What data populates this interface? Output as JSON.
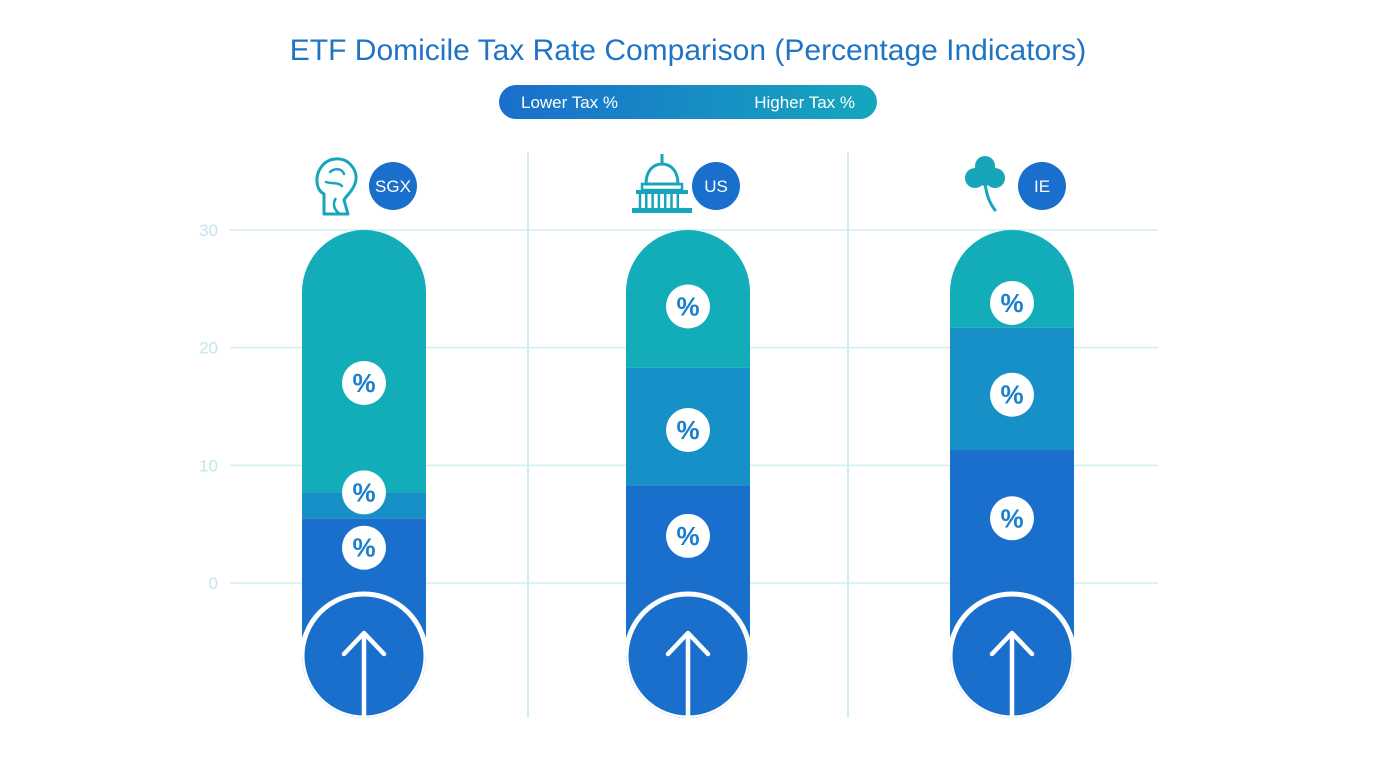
{
  "chart_data": {
    "type": "bar",
    "title": "ETF Domicile Tax Rate Comparison (Percentage Indicators)",
    "legend": {
      "low_label": "Lower Tax %",
      "high_label": "Higher Tax %"
    },
    "yticks": [
      0,
      10,
      20,
      30
    ],
    "ylim": [
      0,
      30
    ],
    "categories": [
      "SGX",
      "US",
      "IE"
    ],
    "category_icons": [
      "merlion-icon",
      "capitol-building-icon",
      "shamrock-icon"
    ],
    "segments": [
      [
        {
          "from": 0,
          "to": 5.5
        },
        {
          "from": 5.5,
          "to": 7.7
        },
        {
          "from": 7.7,
          "to": 30
        }
      ],
      [
        {
          "from": 0,
          "to": 8.3
        },
        {
          "from": 8.3,
          "to": 18.3
        },
        {
          "from": 18.3,
          "to": 30
        }
      ],
      [
        {
          "from": 0,
          "to": 11.3
        },
        {
          "from": 11.3,
          "to": 21.7
        },
        {
          "from": 21.7,
          "to": 30
        }
      ]
    ],
    "percent_markers": [
      [
        3,
        7.7,
        17
      ],
      [
        4,
        13,
        23.5
      ],
      [
        5.5,
        16,
        23.8
      ]
    ],
    "segment_colors": [
      "#1a6fcc",
      "#1690c6",
      "#12adb8"
    ],
    "marker_symbol": "%",
    "gridlines": true
  }
}
